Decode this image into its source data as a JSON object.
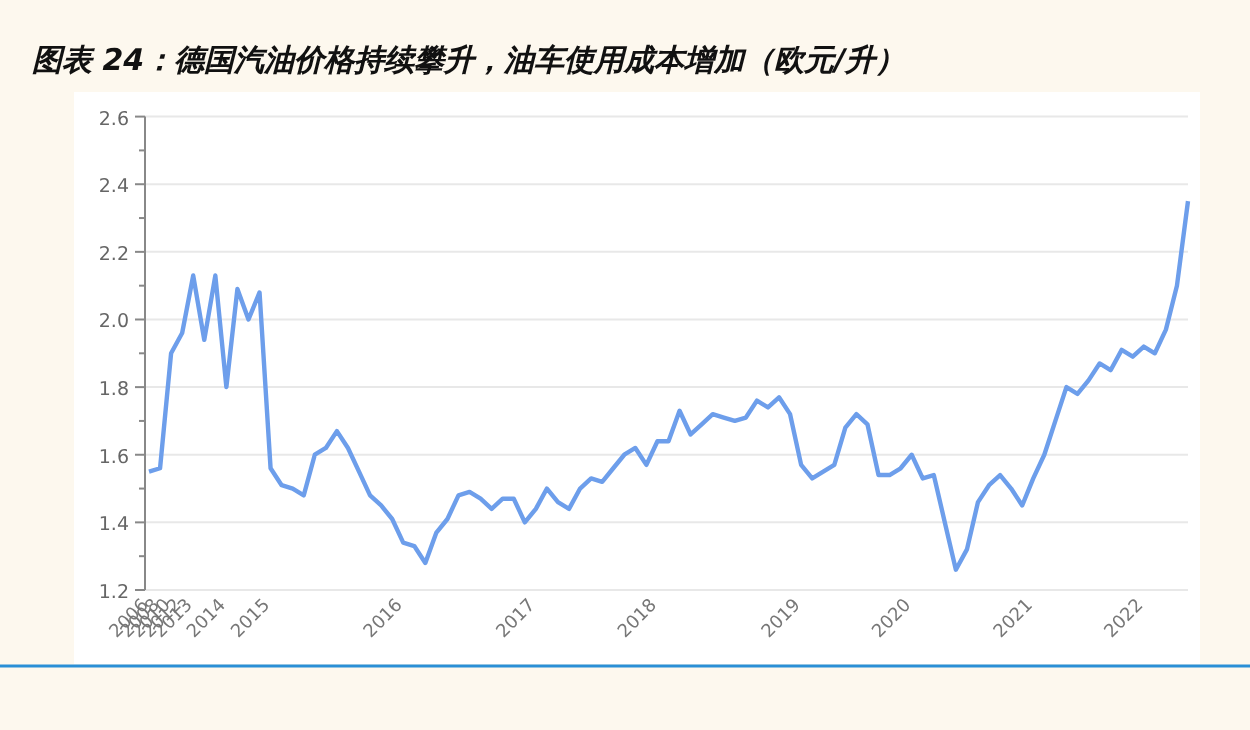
{
  "chart_data": {
    "type": "line",
    "title": "图表 24：德国汽油价格持续攀升，油车使用成本增加（欧元/升）",
    "categories": [
      "2006",
      "2008",
      "2010",
      "2012",
      "2013",
      null,
      null,
      "2014",
      null,
      null,
      null,
      "2015",
      null,
      null,
      null,
      null,
      null,
      null,
      null,
      null,
      null,
      null,
      null,
      "2016",
      null,
      null,
      null,
      null,
      null,
      null,
      null,
      null,
      null,
      null,
      null,
      "2017",
      null,
      null,
      null,
      null,
      null,
      null,
      null,
      null,
      null,
      null,
      "2018",
      null,
      null,
      null,
      null,
      null,
      null,
      null,
      null,
      null,
      null,
      null,
      null,
      "2019",
      null,
      null,
      null,
      null,
      null,
      null,
      null,
      null,
      null,
      "2020",
      null,
      null,
      null,
      null,
      null,
      null,
      null,
      null,
      null,
      null,
      "2021",
      null,
      null,
      null,
      null,
      null,
      null,
      null,
      null,
      null,
      "2022",
      null,
      null,
      null,
      null
    ],
    "series": [
      {
        "color": "#6d9eeb",
        "values": [
          1.55,
          1.56,
          1.9,
          1.96,
          2.13,
          1.94,
          2.13,
          1.8,
          2.09,
          2.0,
          2.08,
          1.56,
          1.51,
          1.5,
          1.48,
          1.6,
          1.62,
          1.67,
          1.62,
          1.55,
          1.48,
          1.45,
          1.41,
          1.34,
          1.33,
          1.28,
          1.37,
          1.41,
          1.48,
          1.49,
          1.47,
          1.44,
          1.47,
          1.47,
          1.4,
          1.44,
          1.5,
          1.46,
          1.44,
          1.5,
          1.53,
          1.52,
          1.56,
          1.6,
          1.62,
          1.57,
          1.64,
          1.64,
          1.73,
          1.66,
          1.69,
          1.72,
          1.71,
          1.7,
          1.71,
          1.76,
          1.74,
          1.77,
          1.72,
          1.57,
          1.53,
          1.55,
          1.57,
          1.68,
          1.72,
          1.69,
          1.54,
          1.54,
          1.56,
          1.6,
          1.53,
          1.54,
          1.4,
          1.26,
          1.32,
          1.46,
          1.51,
          1.54,
          1.5,
          1.45,
          1.53,
          1.6,
          1.7,
          1.8,
          1.78,
          1.82,
          1.87,
          1.85,
          1.91,
          1.89,
          1.92,
          1.9,
          1.97,
          2.1,
          2.35
        ]
      }
    ],
    "ylim": [
      1.2,
      2.6
    ],
    "yticks": [
      1.2,
      {
        "value": 1.3,
        "label": null
      },
      1.4,
      {
        "value": 1.5,
        "label": null
      },
      1.6,
      {
        "value": 1.7,
        "label": null
      },
      1.8,
      {
        "value": 1.9,
        "label": null
      },
      {
        "value": 2.0,
        "label": "2.0"
      },
      {
        "value": 2.1,
        "label": null
      },
      2.2,
      {
        "value": 2.3,
        "label": null
      },
      2.4,
      {
        "value": 2.5,
        "label": null
      },
      2.6
    ],
    "grid": "y",
    "marker": "none",
    "line_style": "solid"
  }
}
